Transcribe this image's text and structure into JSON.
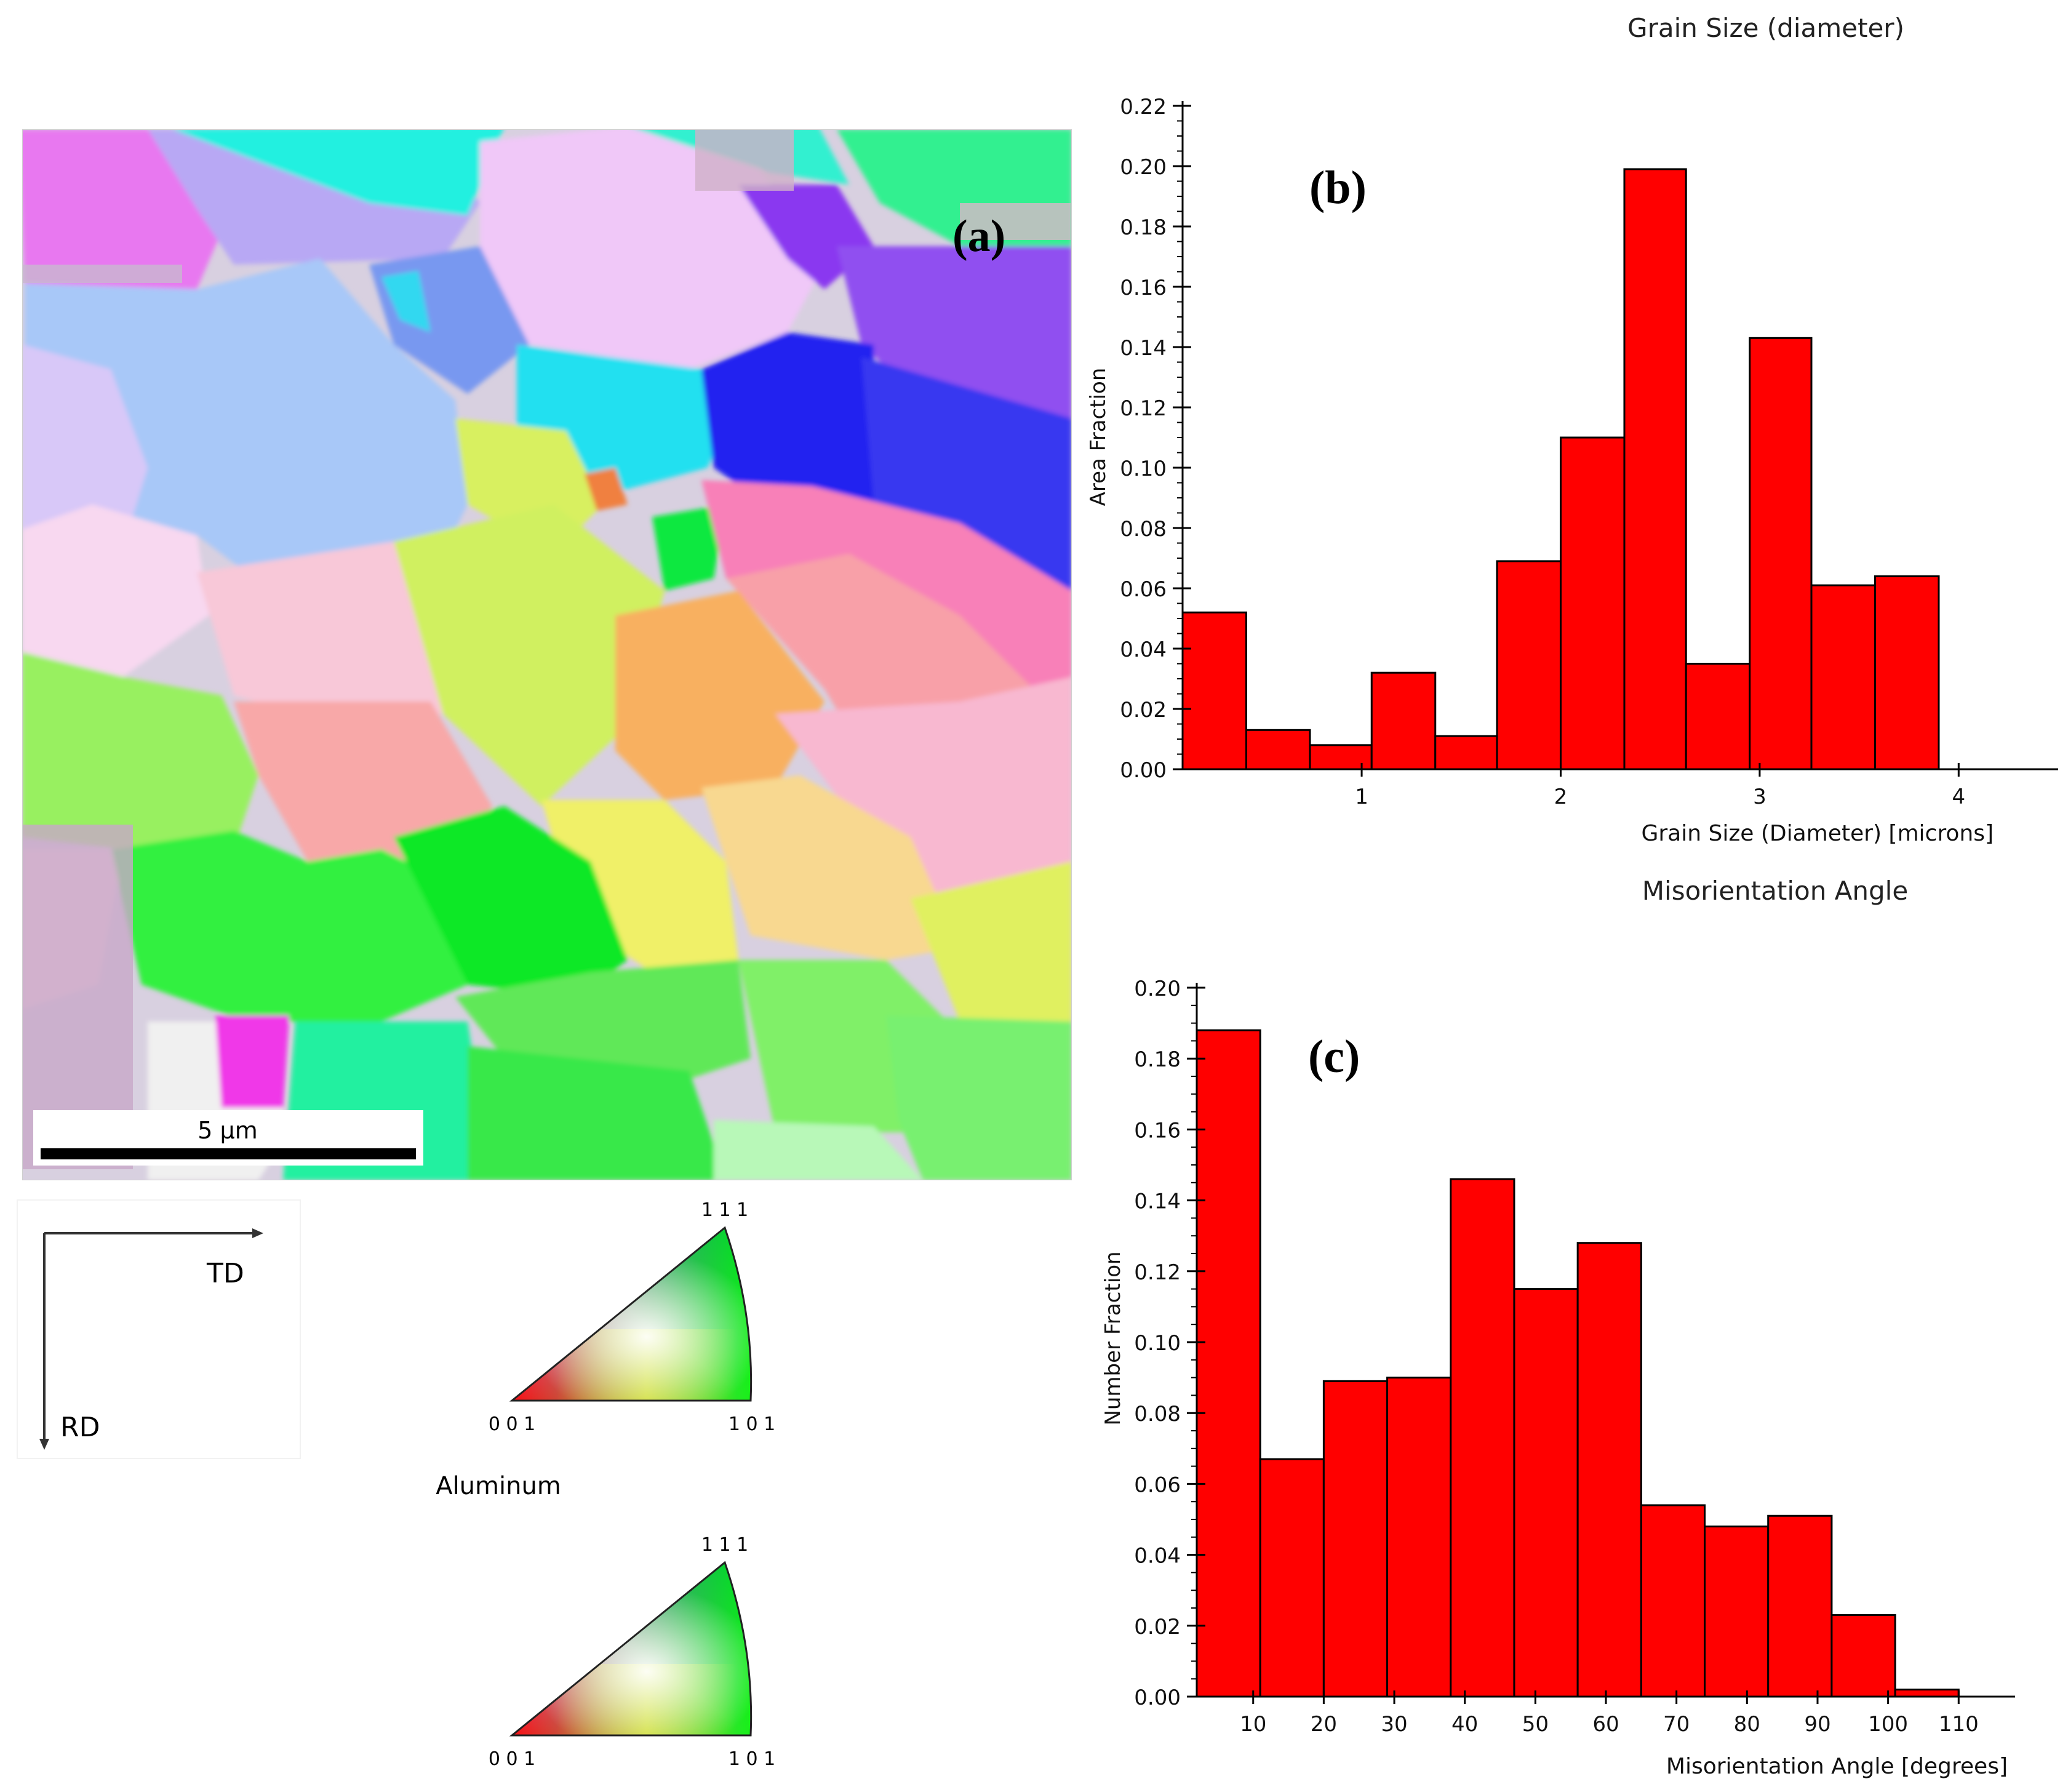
{
  "panel_a": {
    "label": "(a)",
    "scale_bar": "5 μm",
    "axes": {
      "horizontal": "TD",
      "vertical": "RD"
    },
    "legend_title": "Aluminum",
    "triangle_top": {
      "corner_111": "1 1 1",
      "corner_001": "0 0 1",
      "corner_101": "1 0 1"
    },
    "triangle_bottom": {
      "corner_111": "1 1 1",
      "corner_001": "0 0 1",
      "corner_101": "1 0 1"
    },
    "colors": {
      "red": "#ff0000",
      "green": "#00ff00",
      "blue": "#0000ff"
    }
  },
  "chart_data": [
    {
      "type": "bar",
      "panel_label": "(b)",
      "title": "Grain Size (diameter)",
      "xlabel": "Grain Size (Diameter) [microns]",
      "ylabel": "Area Fraction",
      "bin_edges": [
        0.1,
        0.42,
        0.74,
        1.05,
        1.37,
        1.68,
        2.0,
        2.32,
        2.63,
        2.95,
        3.26,
        3.58,
        3.9
      ],
      "values": [
        0.052,
        0.013,
        0.008,
        0.032,
        0.011,
        0.069,
        0.11,
        0.199,
        0.035,
        0.143,
        0.061,
        0.064
      ],
      "xlim": [
        0.1,
        4.5
      ],
      "ylim": [
        0,
        0.22
      ],
      "xticks": [
        1,
        2,
        3,
        4
      ],
      "xtick_labels": [
        "1",
        "2",
        "3",
        "4"
      ],
      "yticks": [
        0,
        0.02,
        0.04,
        0.06,
        0.08,
        0.1,
        0.12,
        0.14,
        0.16,
        0.18,
        0.2,
        0.22
      ],
      "ytick_labels": [
        "0.00",
        "0.02",
        "0.04",
        "0.06",
        "0.08",
        "0.10",
        "0.12",
        "0.14",
        "0.16",
        "0.18",
        "0.20",
        "0.22"
      ],
      "bar_color": "#ff0000"
    },
    {
      "type": "bar",
      "panel_label": "(c)",
      "title": "Misorientation Angle",
      "xlabel": "Misorientation Angle [degrees]",
      "ylabel": "Number Fraction",
      "bin_edges": [
        2,
        11,
        20,
        29,
        38,
        47,
        56,
        65,
        74,
        83,
        92,
        101,
        110
      ],
      "values": [
        0.188,
        0.067,
        0.089,
        0.09,
        0.146,
        0.115,
        0.128,
        0.054,
        0.048,
        0.051,
        0.023,
        0.002
      ],
      "xlim": [
        2,
        118
      ],
      "ylim": [
        0,
        0.2
      ],
      "xticks": [
        10,
        20,
        30,
        40,
        50,
        60,
        70,
        80,
        90,
        100,
        110
      ],
      "xtick_labels": [
        "10",
        "20",
        "30",
        "40",
        "50",
        "60",
        "70",
        "80",
        "90",
        "100",
        "110"
      ],
      "yticks": [
        0,
        0.02,
        0.04,
        0.06,
        0.08,
        0.1,
        0.12,
        0.14,
        0.16,
        0.18,
        0.2
      ],
      "ytick_labels": [
        "0.00",
        "0.02",
        "0.04",
        "0.06",
        "0.08",
        "0.10",
        "0.12",
        "0.14",
        "0.16",
        "0.18",
        "0.20"
      ],
      "bar_color": "#ff0000"
    }
  ]
}
